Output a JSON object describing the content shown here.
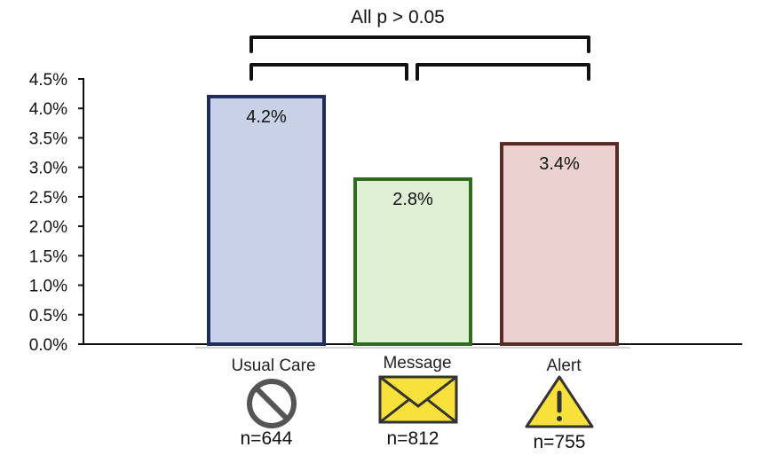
{
  "chart_data": {
    "type": "bar",
    "title": "All p > 0.05",
    "categories": [
      "Usual Care",
      "Message",
      "Alert"
    ],
    "values": [
      4.2,
      2.8,
      3.4
    ],
    "data_labels": [
      "4.2%",
      "2.8%",
      "3.4%"
    ],
    "sample_sizes": [
      "n=644",
      "n=812",
      "n=755"
    ],
    "ylim": [
      0,
      4.5
    ],
    "yticks": [
      "0.0%",
      "0.5%",
      "1.0%",
      "1.5%",
      "2.0%",
      "2.5%",
      "3.0%",
      "3.5%",
      "4.0%",
      "4.5%"
    ],
    "grid": false,
    "legend": "none",
    "colors": {
      "fills": [
        "#c8d1e6",
        "#dff0d5",
        "#ecd1d1"
      ],
      "strokes": [
        "#1e2d5c",
        "#2f6b1e",
        "#5a2a24"
      ]
    },
    "icons": [
      "no-entry-icon",
      "envelope-icon",
      "warning-icon"
    ]
  }
}
